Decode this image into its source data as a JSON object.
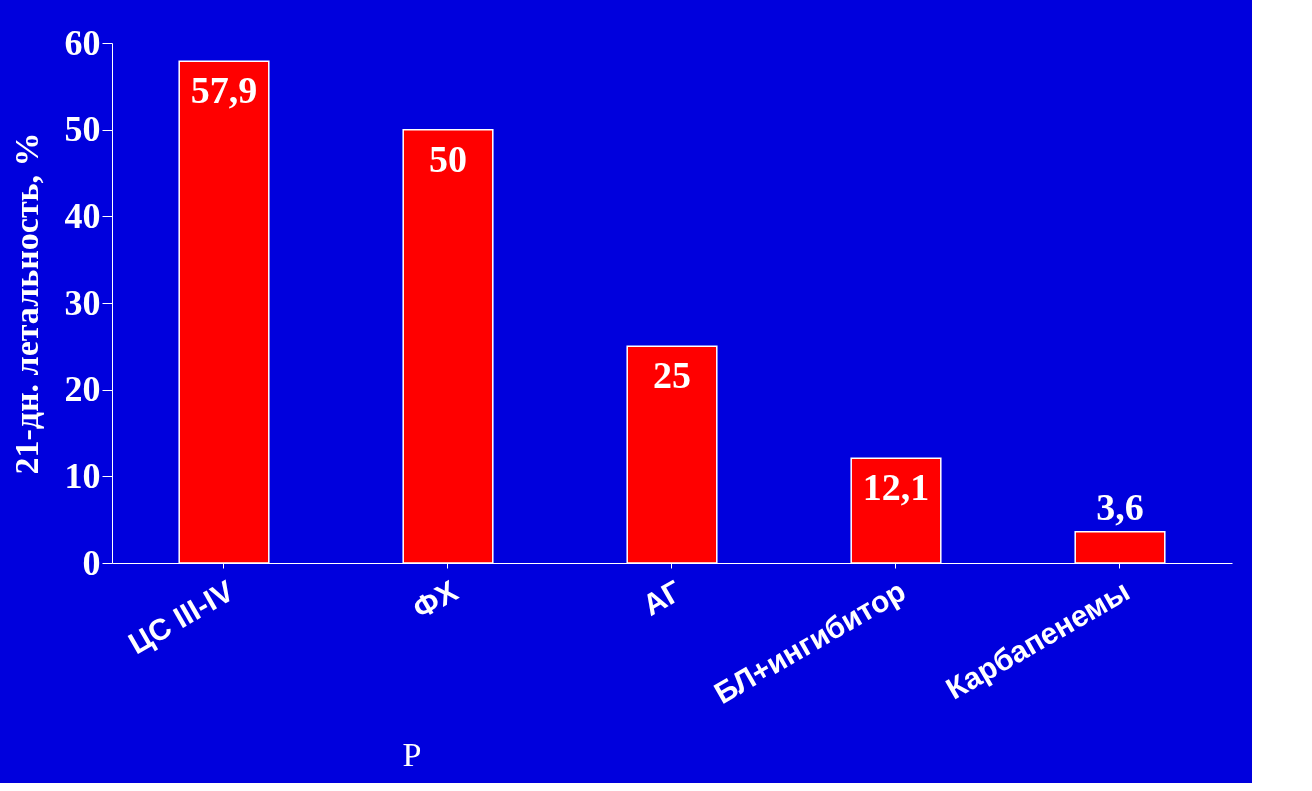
{
  "chart_data": {
    "type": "bar",
    "ylabel": "21-дн. летальность, %",
    "categories": [
      "ЦС III-IV",
      "ФХ",
      "АГ",
      "БЛ+ингибитор",
      "Карбапенемы"
    ],
    "values": [
      57.9,
      50,
      25,
      12.1,
      3.6
    ],
    "value_labels": [
      "57,9",
      "50",
      "25",
      "12,1",
      "3,6"
    ],
    "color": "#ff0000",
    "ylim": [
      0,
      60
    ],
    "yticks": [
      0,
      10,
      20,
      30,
      40,
      50,
      60
    ],
    "grid": false,
    "annotations": [
      "P"
    ]
  }
}
